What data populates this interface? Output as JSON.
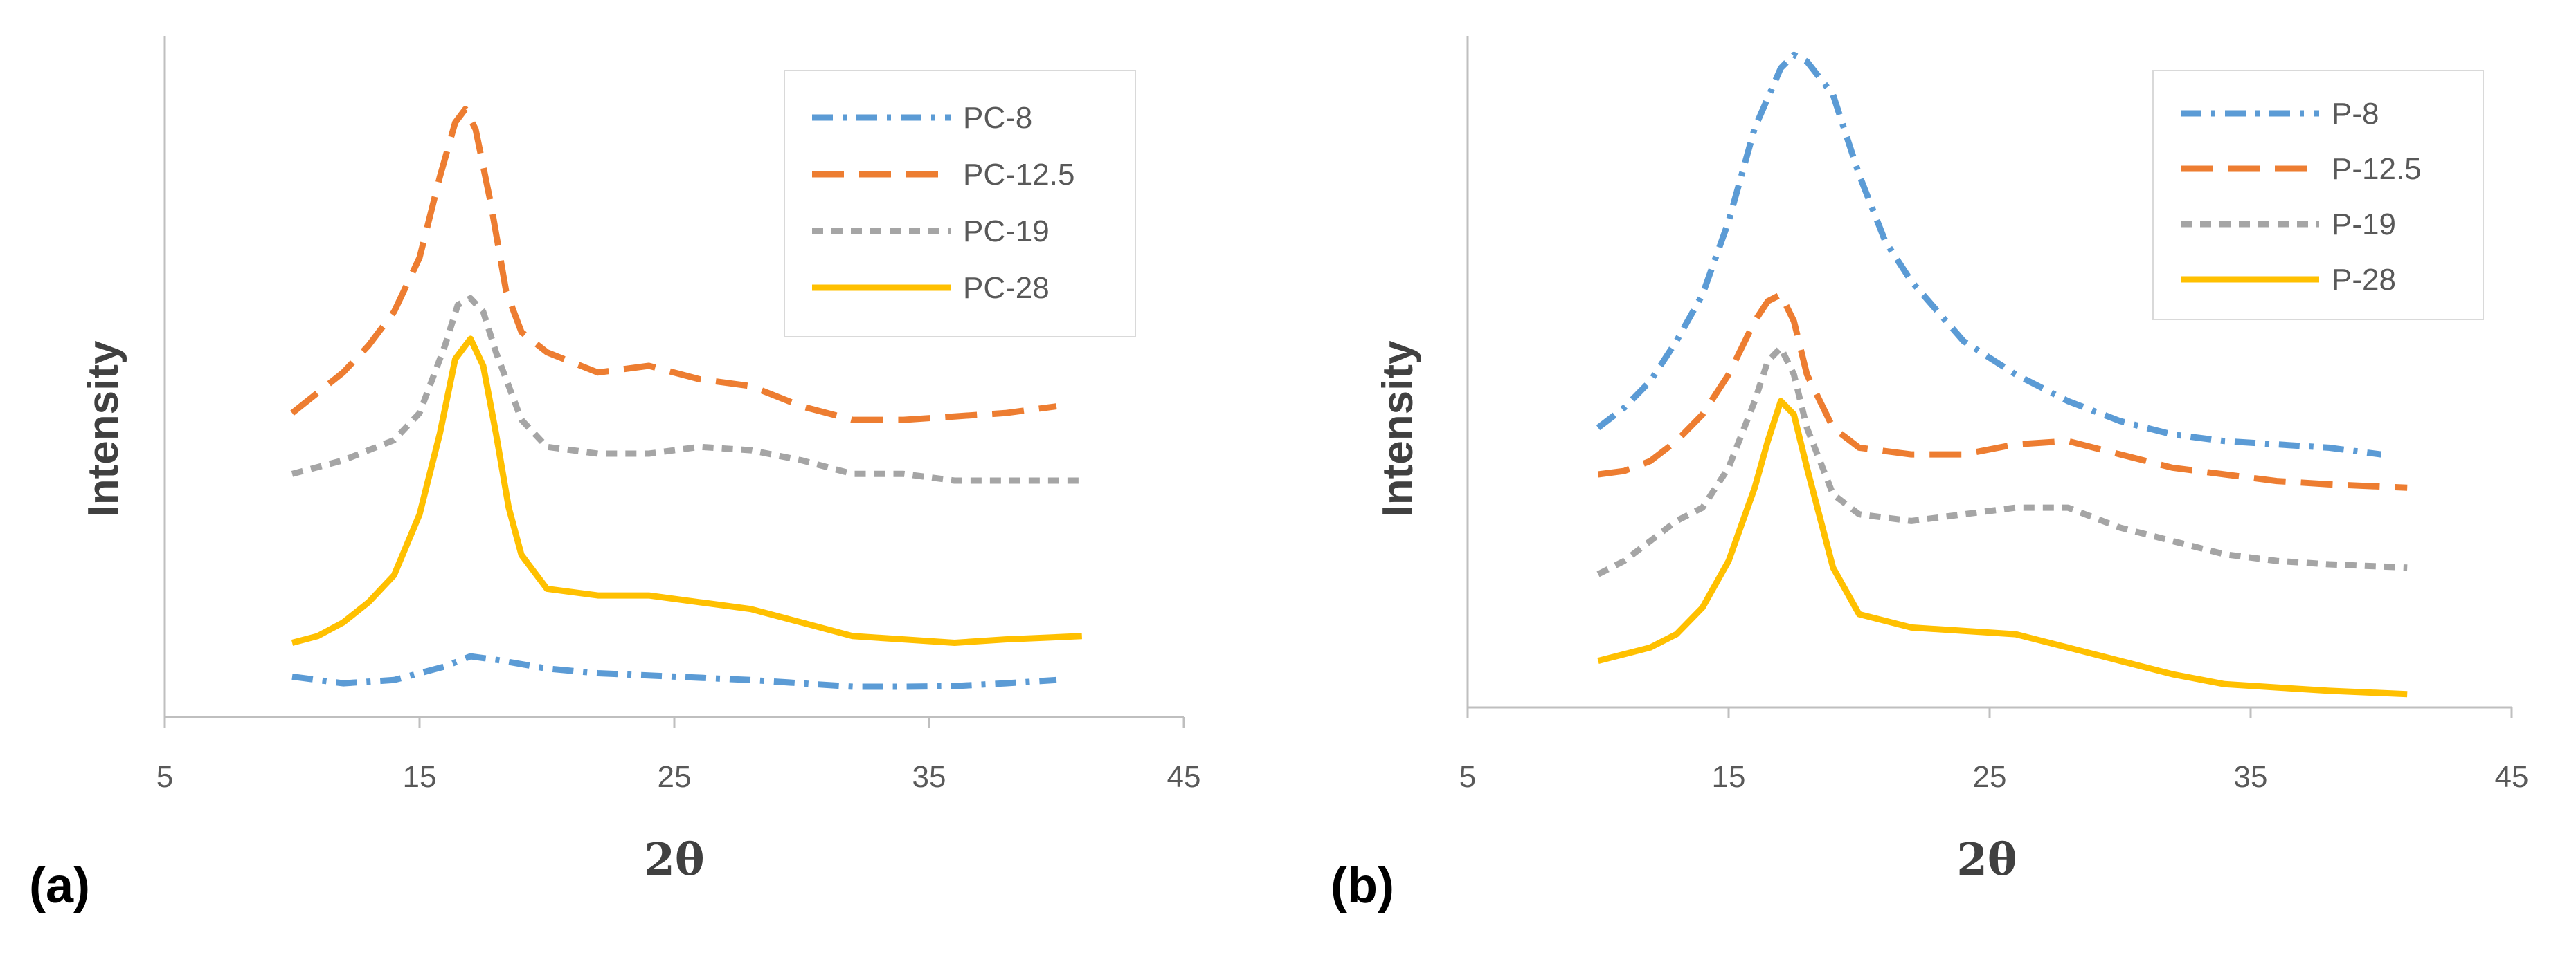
{
  "colors": {
    "blue": "#5b9bd5",
    "orange": "#ed7d31",
    "gray": "#a5a5a5",
    "gold": "#ffc000",
    "axis": "#bfbfbf"
  },
  "panels": [
    {
      "label": "(a)"
    },
    {
      "label": "(b)"
    }
  ],
  "chart_data": [
    {
      "type": "line",
      "panel": "(a)",
      "title": "",
      "xlabel": "2θ",
      "ylabel": "Intensity",
      "xlim": [
        5,
        45
      ],
      "ylim": [
        0,
        100
      ],
      "xticks": [
        "5",
        "15",
        "25",
        "35",
        "45"
      ],
      "legend_position": "top-right",
      "series": [
        {
          "name": "PC-8",
          "color": "#5b9bd5",
          "dash": "dashdot",
          "x": [
            10,
            12,
            14,
            16,
            17,
            18,
            20,
            22,
            25,
            28,
            30,
            32,
            34,
            36,
            38,
            40
          ],
          "y": [
            6,
            5,
            5.5,
            7.5,
            9,
            8.5,
            7.2,
            6.5,
            6,
            5.5,
            5,
            4.5,
            4.5,
            4.6,
            5,
            5.5
          ]
        },
        {
          "name": "PC-12.5",
          "color": "#ed7d31",
          "dash": "dash",
          "x": [
            10,
            11,
            12,
            13,
            14,
            15,
            15.8,
            16.4,
            16.8,
            17.2,
            17.8,
            18.4,
            19,
            20,
            22,
            24,
            26,
            28,
            30,
            32,
            34,
            36,
            38,
            40
          ],
          "y": [
            45,
            48,
            51,
            55,
            60,
            68,
            80,
            88,
            90,
            87,
            76,
            63,
            57,
            54,
            51,
            52,
            50,
            49,
            46,
            44,
            44,
            44.5,
            45,
            46
          ]
        },
        {
          "name": "PC-19",
          "color": "#a5a5a5",
          "dash": "dot",
          "x": [
            10,
            12,
            14,
            15,
            16,
            16.5,
            17,
            17.5,
            18,
            19,
            20,
            22,
            24,
            26,
            28,
            30,
            32,
            34,
            36,
            38,
            41
          ],
          "y": [
            36,
            38,
            41,
            45,
            55,
            61,
            62,
            60,
            54,
            44,
            40,
            39,
            39,
            40,
            39.5,
            38,
            36,
            36,
            35,
            35,
            35
          ]
        },
        {
          "name": "PC-28",
          "color": "#ffc000",
          "dash": "solid",
          "x": [
            10,
            11,
            12,
            13,
            14,
            15,
            15.8,
            16.4,
            17,
            17.5,
            18,
            18.5,
            19,
            20,
            22,
            24,
            26,
            28,
            30,
            32,
            34,
            36,
            38,
            41
          ],
          "y": [
            11,
            12,
            14,
            17,
            21,
            30,
            42,
            53,
            56,
            52,
            42,
            31,
            24,
            19,
            18,
            18,
            17,
            16,
            14,
            12,
            11.5,
            11,
            11.5,
            12
          ]
        }
      ]
    },
    {
      "type": "line",
      "panel": "(b)",
      "title": "",
      "xlabel": "2θ",
      "ylabel": "Intensity",
      "xlim": [
        5,
        45
      ],
      "ylim": [
        0,
        100
      ],
      "xticks": [
        "5",
        "15",
        "25",
        "35",
        "45"
      ],
      "legend_position": "top-right",
      "series": [
        {
          "name": "P-8",
          "color": "#5b9bd5",
          "dash": "dashdot",
          "x": [
            10,
            11,
            12,
            13,
            14,
            15,
            16,
            17,
            17.5,
            18,
            19,
            20,
            21,
            22,
            24,
            26,
            28,
            30,
            32,
            34,
            36,
            38,
            40
          ],
          "y": [
            42,
            45,
            49,
            55,
            62,
            73,
            87,
            96,
            98,
            97,
            92,
            80,
            70,
            64,
            55,
            50,
            46,
            43,
            41,
            40,
            39.5,
            39,
            38
          ]
        },
        {
          "name": "P-12.5",
          "color": "#ed7d31",
          "dash": "dash",
          "x": [
            10,
            11,
            12,
            13,
            14,
            15,
            16,
            16.5,
            17,
            17.5,
            18,
            19,
            20,
            22,
            24,
            26,
            28,
            30,
            32,
            34,
            36,
            38,
            41
          ],
          "y": [
            35,
            35.5,
            37,
            40,
            44,
            50,
            58,
            61,
            62,
            58,
            50,
            42,
            39,
            38,
            38,
            39.5,
            40,
            38,
            36,
            35,
            34,
            33.5,
            33
          ]
        },
        {
          "name": "P-19",
          "color": "#a5a5a5",
          "dash": "dot",
          "x": [
            10,
            11,
            12,
            13,
            14,
            15,
            16,
            16.5,
            17,
            17.5,
            18,
            19,
            20,
            22,
            24,
            26,
            28,
            30,
            32,
            34,
            36,
            38,
            41
          ],
          "y": [
            20,
            22,
            25,
            28,
            30,
            36,
            46,
            52,
            54,
            50,
            42,
            32,
            29,
            28,
            29,
            30,
            30,
            27,
            25,
            23,
            22,
            21.5,
            21
          ]
        },
        {
          "name": "P-28",
          "color": "#ffc000",
          "dash": "solid",
          "x": [
            10,
            11,
            12,
            13,
            14,
            15,
            16,
            16.5,
            17,
            17.5,
            18,
            19,
            20,
            22,
            24,
            26,
            28,
            30,
            32,
            34,
            36,
            38,
            41
          ],
          "y": [
            7,
            8,
            9,
            11,
            15,
            22,
            33,
            40,
            46,
            44,
            36,
            21,
            14,
            12,
            11.5,
            11,
            9,
            7,
            5,
            3.5,
            3,
            2.5,
            2
          ]
        }
      ]
    }
  ]
}
